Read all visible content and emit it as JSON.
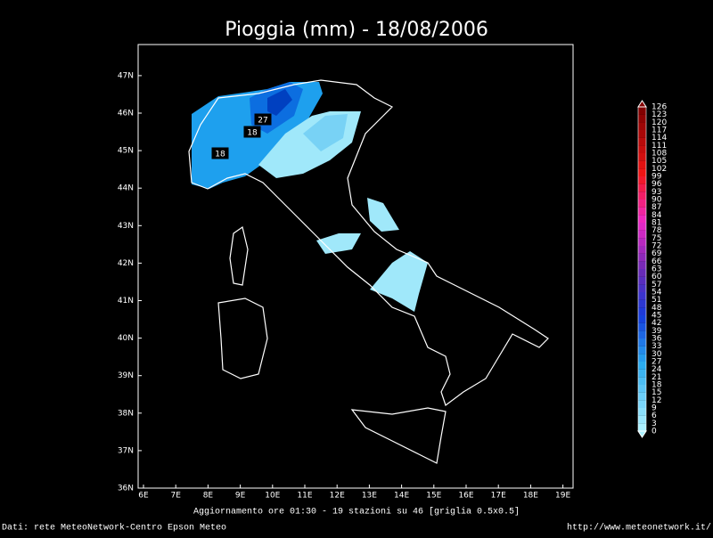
{
  "title": "Pioggia (mm) - 18/08/2006",
  "map": {
    "lon_ticks": [
      "6E",
      "7E",
      "8E",
      "9E",
      "10E",
      "11E",
      "12E",
      "13E",
      "14E",
      "15E",
      "16E",
      "17E",
      "18E",
      "19E"
    ],
    "lat_ticks": [
      "36N",
      "37N",
      "38N",
      "39N",
      "40N",
      "41N",
      "42N",
      "43N",
      "44N",
      "45N",
      "46N",
      "47N"
    ],
    "contour_labels": [
      "27",
      "18",
      "18"
    ]
  },
  "colorbar": {
    "levels": [
      0,
      3,
      6,
      9,
      12,
      15,
      18,
      21,
      24,
      27,
      30,
      33,
      36,
      39,
      42,
      45,
      48,
      51,
      54,
      57,
      60,
      63,
      66,
      69,
      72,
      75,
      78,
      81,
      84,
      87,
      90,
      93,
      96,
      99,
      102,
      105,
      108,
      111,
      114,
      117,
      120,
      123,
      126
    ]
  },
  "footer": {
    "update": "Aggiornamento ore 01:30 - 19 stazioni su 46 [griglia 0.5x0.5]",
    "source": "Dati: rete MeteoNetwork-Centro Epson Meteo",
    "url": "http://www.meteonetwork.it/"
  }
}
